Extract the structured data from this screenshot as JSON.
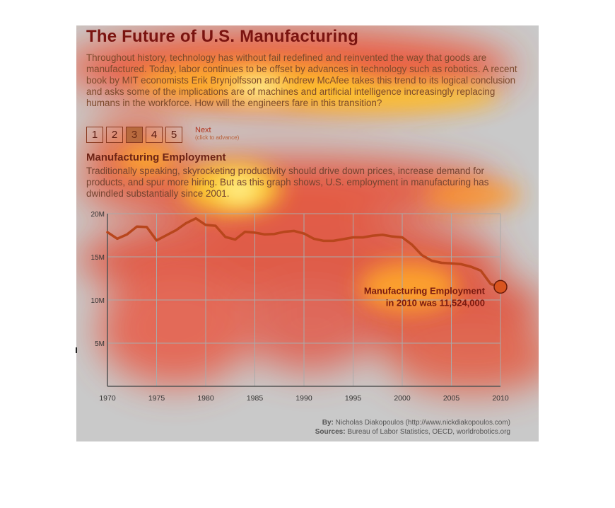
{
  "title": "The Future of U.S. Manufacturing",
  "intro": "Throughout history, technology has without fail redefined and reinvented the way that goods are manufactured. Today, labor continues to be offset by advances in technology such as robotics. A recent book by MIT economists Erik Brynjolfsson and Andrew McAfee takes this trend to its logical conclusion and asks some of the implications are of machines and artificial intelligence increasingly replacing humans in the workforce. How will the engineers fare in this transition?",
  "pager": {
    "pages": [
      "1",
      "2",
      "3",
      "4",
      "5"
    ],
    "active_index": 2,
    "next_label": "Next",
    "next_hint": "(click to advance)"
  },
  "section": {
    "title": "Manufacturing Employment",
    "text": "Traditionally speaking, skyrocketing productivity should drive down prices, increase demand for products, and spur more hiring. But as this graph shows, U.S. employment in manufacturing has dwindled substantially since 2001."
  },
  "chart_data": {
    "type": "line",
    "title": "",
    "xlabel": "",
    "ylabel": "",
    "xlim": [
      1970,
      2010
    ],
    "ylim": [
      0,
      20000000
    ],
    "x_ticks": [
      1970,
      1975,
      1980,
      1985,
      1990,
      1995,
      2000,
      2005,
      2010
    ],
    "x_tick_labels": [
      "1970",
      "1975",
      "1980",
      "1985",
      "1990",
      "1995",
      "2000",
      "2005",
      "2010"
    ],
    "y_ticks": [
      5000000,
      10000000,
      15000000,
      20000000
    ],
    "y_tick_labels": [
      "5M",
      "10M",
      "15M",
      "20M"
    ],
    "grid": true,
    "series": [
      {
        "values": [
          [
            1970,
            17850000
          ],
          [
            1971,
            17100000
          ],
          [
            1972,
            17600000
          ],
          [
            1973,
            18500000
          ],
          [
            1974,
            18450000
          ],
          [
            1975,
            16900000
          ],
          [
            1976,
            17500000
          ],
          [
            1977,
            18100000
          ],
          [
            1978,
            18900000
          ],
          [
            1979,
            19450000
          ],
          [
            1980,
            18700000
          ],
          [
            1981,
            18600000
          ],
          [
            1982,
            17300000
          ],
          [
            1983,
            17000000
          ],
          [
            1984,
            17900000
          ],
          [
            1985,
            17800000
          ],
          [
            1986,
            17600000
          ],
          [
            1987,
            17650000
          ],
          [
            1988,
            17900000
          ],
          [
            1989,
            18000000
          ],
          [
            1990,
            17700000
          ],
          [
            1991,
            17100000
          ],
          [
            1992,
            16850000
          ],
          [
            1993,
            16850000
          ],
          [
            1994,
            17050000
          ],
          [
            1995,
            17250000
          ],
          [
            1996,
            17250000
          ],
          [
            1997,
            17450000
          ],
          [
            1998,
            17550000
          ],
          [
            1999,
            17350000
          ],
          [
            2000,
            17250000
          ],
          [
            2001,
            16400000
          ],
          [
            2002,
            15200000
          ],
          [
            2003,
            14550000
          ],
          [
            2004,
            14300000
          ],
          [
            2005,
            14250000
          ],
          [
            2006,
            14150000
          ],
          [
            2007,
            13850000
          ],
          [
            2008,
            13400000
          ],
          [
            2009,
            11850000
          ],
          [
            2010,
            11524000
          ]
        ]
      }
    ],
    "highlight": {
      "x": 2010,
      "y": 11524000
    },
    "annotation": [
      "Manufacturing Employment",
      "in 2010 was 11,524,000"
    ],
    "colors": {
      "line": "#b8461c",
      "marker_fill": "#d9541e",
      "marker_stroke": "#6a1a08",
      "annotation": "#7a1a10",
      "grid": "#aaaaaa",
      "axis": "#555555"
    }
  },
  "credits": {
    "by_label": "By:",
    "by_text": "Nicholas Diakopoulos (http://www.nickdiakopoulos.com)",
    "sources_label": "Sources:",
    "sources_text": "Bureau of Labor Statistics, OECD, worldrobotics.org"
  }
}
